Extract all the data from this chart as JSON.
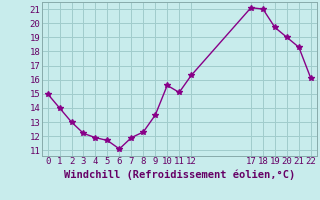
{
  "x": [
    0,
    1,
    2,
    3,
    4,
    5,
    6,
    7,
    8,
    9,
    10,
    11,
    12,
    17,
    18,
    19,
    20,
    21,
    22
  ],
  "y": [
    15.0,
    14.0,
    13.0,
    12.2,
    11.9,
    11.7,
    11.1,
    11.9,
    12.3,
    13.5,
    15.6,
    15.1,
    16.3,
    21.1,
    21.0,
    19.7,
    19.0,
    18.3,
    16.1
  ],
  "line_color": "#880088",
  "marker": "*",
  "marker_size": 4,
  "linewidth": 1.0,
  "xlabel": "Windchill (Refroidissement éolien,°C)",
  "xlim": [
    -0.5,
    22.5
  ],
  "ylim": [
    10.6,
    21.5
  ],
  "yticks": [
    11,
    12,
    13,
    14,
    15,
    16,
    17,
    18,
    19,
    20,
    21
  ],
  "xticks": [
    0,
    1,
    2,
    3,
    4,
    5,
    6,
    7,
    8,
    9,
    10,
    11,
    12,
    17,
    18,
    19,
    20,
    21,
    22
  ],
  "bg_color": "#c8ecec",
  "grid_color": "#a0cccc",
  "xlabel_fontsize": 7.5,
  "tick_fontsize": 6.5
}
